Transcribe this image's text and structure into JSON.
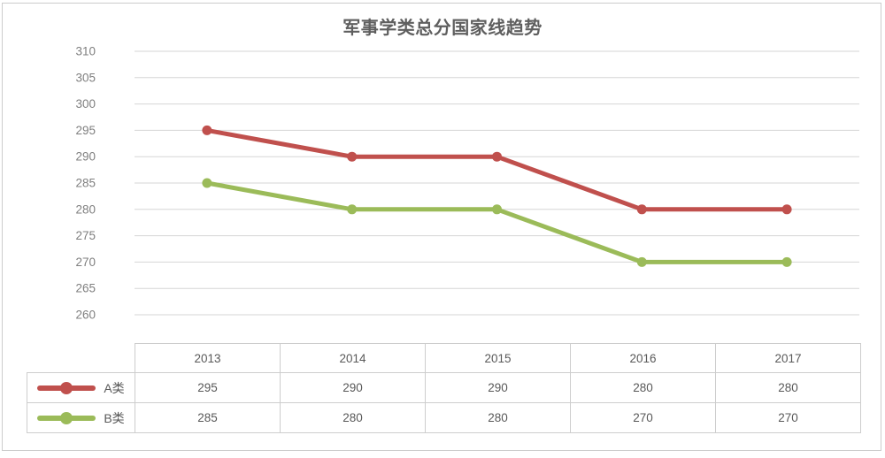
{
  "chart_data": {
    "type": "line",
    "title": "军事学类总分国家线趋势",
    "categories": [
      "2013",
      "2014",
      "2015",
      "2016",
      "2017"
    ],
    "series": [
      {
        "name": "A类",
        "color": "#c0504d",
        "values": [
          295,
          290,
          290,
          280,
          280
        ]
      },
      {
        "name": "B类",
        "color": "#9bbb59",
        "values": [
          285,
          280,
          280,
          270,
          270
        ]
      }
    ],
    "ylim": [
      260,
      310
    ],
    "yticks": [
      310,
      305,
      300,
      295,
      290,
      285,
      280,
      275,
      270,
      265,
      260
    ],
    "xlabel": "",
    "ylabel": "",
    "grid": true,
    "legend_position": "table-left-column",
    "table_shown": true
  },
  "colors": {
    "series_a": "#c0504d",
    "series_b": "#9bbb59",
    "gridline": "#d6d6d6",
    "axis_text": "#7f7f7f",
    "table_border": "#cdcdcd",
    "table_text": "#595959",
    "title_text": "#5f5f5f",
    "frame": "#cccccc",
    "background": "#ffffff"
  }
}
